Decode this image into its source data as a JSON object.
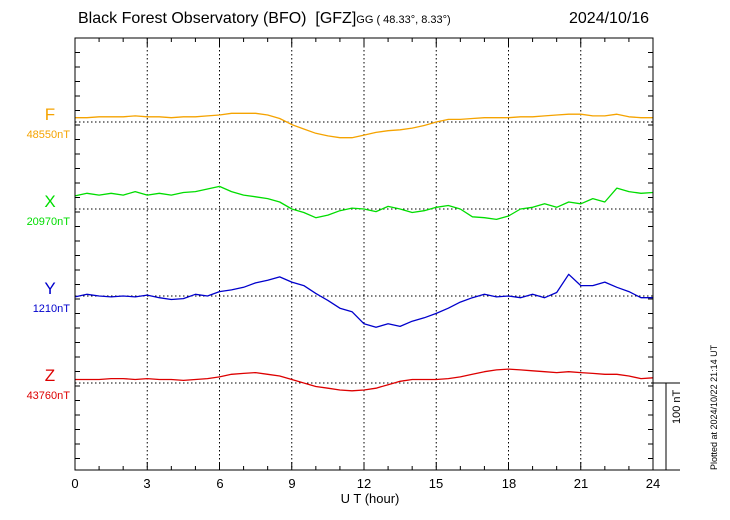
{
  "header": {
    "station": "Black Forest Observatory (BFO)",
    "institute": "[GFZ]",
    "coords": "GG ( 48.33°,   8.33°)",
    "date": "2024/10/16"
  },
  "plotted_at": "Plotted at 2024/10/22 21:14 UT",
  "scale_label": "100 nT",
  "colors": {
    "F": "#f5a300",
    "X": "#00dd00",
    "Y": "#0000cc",
    "Z": "#dd0000"
  },
  "chart_data": {
    "type": "line",
    "xlabel": "U T (hour)",
    "xlim": [
      0,
      24
    ],
    "xticks": [
      "0",
      "3",
      "6",
      "9",
      "12",
      "15",
      "18",
      "21",
      "24"
    ],
    "grid": true,
    "scale_bar_nT": 100,
    "series": [
      {
        "name": "F",
        "baseline_label": "48550nT",
        "baseline_nT": 48550,
        "x": [
          0,
          0.5,
          1,
          1.5,
          2,
          2.5,
          3,
          3.5,
          4,
          4.5,
          5,
          5.5,
          6,
          6.5,
          7,
          7.5,
          8,
          8.5,
          9,
          9.5,
          10,
          10.5,
          11,
          11.5,
          12,
          12.5,
          13,
          13.5,
          14,
          14.5,
          15,
          15.5,
          16,
          16.5,
          17,
          17.5,
          18,
          18.5,
          19,
          19.5,
          20,
          20.5,
          21,
          21.5,
          22,
          22.5,
          23,
          23.5,
          24
        ],
        "y": [
          48555,
          48555,
          48556,
          48556,
          48556,
          48557,
          48556,
          48556,
          48555,
          48556,
          48556,
          48557,
          48558,
          48560,
          48560,
          48560,
          48558,
          48554,
          48547,
          48542,
          48537,
          48534,
          48532,
          48532,
          48535,
          48538,
          48540,
          48541,
          48543,
          48546,
          48550,
          48553,
          48553,
          48554,
          48555,
          48555,
          48555,
          48556,
          48556,
          48557,
          48558,
          48559,
          48559,
          48557,
          48557,
          48559,
          48556,
          48555,
          48555
        ]
      },
      {
        "name": "X",
        "baseline_label": "20970nT",
        "baseline_nT": 20970,
        "x": [
          0,
          0.5,
          1,
          1.5,
          2,
          2.5,
          3,
          3.5,
          4,
          4.5,
          5,
          5.5,
          6,
          6.5,
          7,
          7.5,
          8,
          8.5,
          9,
          9.5,
          10,
          10.5,
          11,
          11.5,
          12,
          12.5,
          13,
          13.5,
          14,
          14.5,
          15,
          15.5,
          16,
          16.5,
          17,
          17.5,
          18,
          18.5,
          19,
          19.5,
          20,
          20.5,
          21,
          21.5,
          22,
          22.5,
          23,
          23.5,
          24
        ],
        "y": [
          20985,
          20988,
          20986,
          20988,
          20986,
          20990,
          20986,
          20988,
          20986,
          20989,
          20990,
          20993,
          20996,
          20990,
          20986,
          20984,
          20982,
          20978,
          20970,
          20966,
          20960,
          20963,
          20968,
          20971,
          20970,
          20967,
          20973,
          20970,
          20966,
          20968,
          20972,
          20974,
          20970,
          20961,
          20960,
          20958,
          20962,
          20970,
          20972,
          20976,
          20972,
          20978,
          20976,
          20982,
          20978,
          20994,
          20990,
          20988,
          20989
        ]
      },
      {
        "name": "Y",
        "baseline_label": "1210nT",
        "baseline_nT": 1210,
        "x": [
          0,
          0.5,
          1,
          1.5,
          2,
          2.5,
          3,
          3.5,
          4,
          4.5,
          5,
          5.5,
          6,
          6.5,
          7,
          7.5,
          8,
          8.5,
          9,
          9.5,
          10,
          10.5,
          11,
          11.5,
          12,
          12.5,
          13,
          13.5,
          14,
          14.5,
          15,
          15.5,
          16,
          16.5,
          17,
          17.5,
          18,
          18.5,
          19,
          19.5,
          20,
          20.5,
          21,
          21.5,
          22,
          22.5,
          23,
          23.5,
          24
        ],
        "y": [
          1209,
          1212,
          1210,
          1209,
          1210,
          1209,
          1211,
          1208,
          1206,
          1207,
          1212,
          1210,
          1215,
          1217,
          1220,
          1225,
          1228,
          1232,
          1226,
          1222,
          1213,
          1205,
          1196,
          1192,
          1178,
          1174,
          1178,
          1175,
          1181,
          1185,
          1190,
          1196,
          1203,
          1208,
          1212,
          1209,
          1210,
          1208,
          1212,
          1208,
          1214,
          1235,
          1222,
          1222,
          1226,
          1220,
          1215,
          1208,
          1208
        ]
      },
      {
        "name": "Z",
        "baseline_label": "43760nT",
        "baseline_nT": 43760,
        "x": [
          0,
          0.5,
          1,
          1.5,
          2,
          2.5,
          3,
          3.5,
          4,
          4.5,
          5,
          5.5,
          6,
          6.5,
          7,
          7.5,
          8,
          8.5,
          9,
          9.5,
          10,
          10.5,
          11,
          11.5,
          12,
          12.5,
          13,
          13.5,
          14,
          14.5,
          15,
          15.5,
          16,
          16.5,
          17,
          17.5,
          18,
          18.5,
          19,
          19.5,
          20,
          20.5,
          21,
          21.5,
          22,
          22.5,
          23,
          23.5,
          24
        ],
        "y": [
          43764,
          43764,
          43764,
          43765,
          43765,
          43764,
          43765,
          43764,
          43764,
          43763,
          43764,
          43765,
          43767,
          43770,
          43771,
          43772,
          43770,
          43768,
          43764,
          43760,
          43756,
          43754,
          43752,
          43751,
          43752,
          43754,
          43758,
          43762,
          43764,
          43764,
          43764,
          43765,
          43767,
          43770,
          43773,
          43775,
          43776,
          43775,
          43774,
          43773,
          43772,
          43773,
          43772,
          43771,
          43770,
          43770,
          43768,
          43765,
          43766
        ]
      }
    ]
  }
}
